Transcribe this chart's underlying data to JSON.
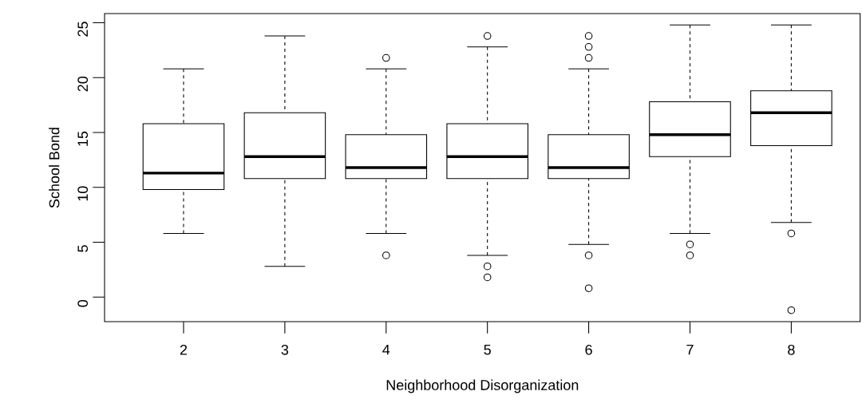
{
  "chart_data": {
    "type": "box",
    "xlabel": "Neighborhood Disorganization",
    "ylabel": "School Bond",
    "categories": [
      "2",
      "3",
      "4",
      "5",
      "6",
      "7",
      "8"
    ],
    "boxes": [
      {
        "low": 5.8,
        "q1": 9.8,
        "median": 11.3,
        "q3": 15.8,
        "high": 20.8
      },
      {
        "low": 2.8,
        "q1": 10.8,
        "median": 12.8,
        "q3": 16.8,
        "high": 23.8
      },
      {
        "low": 5.8,
        "q1": 10.8,
        "median": 11.8,
        "q3": 14.8,
        "high": 20.8,
        "outliers": [
          21.8,
          3.8
        ]
      },
      {
        "low": 3.8,
        "q1": 10.8,
        "median": 12.8,
        "q3": 15.8,
        "high": 22.8,
        "outliers": [
          23.8,
          2.8,
          1.8
        ]
      },
      {
        "low": 4.8,
        "q1": 10.8,
        "median": 11.8,
        "q3": 14.8,
        "high": 20.8,
        "outliers": [
          23.8,
          22.8,
          21.8,
          3.8,
          0.8
        ]
      },
      {
        "low": 5.8,
        "q1": 12.8,
        "median": 14.8,
        "q3": 17.8,
        "high": 24.8,
        "outliers": [
          4.8,
          3.8
        ]
      },
      {
        "low": 6.8,
        "q1": 13.8,
        "median": 16.8,
        "q3": 18.8,
        "high": 24.8,
        "outliers": [
          5.8,
          -1.2
        ]
      }
    ],
    "ylim": [
      -2.24,
      25.84
    ],
    "yticks": [
      0,
      5,
      10,
      15,
      20,
      25
    ]
  }
}
